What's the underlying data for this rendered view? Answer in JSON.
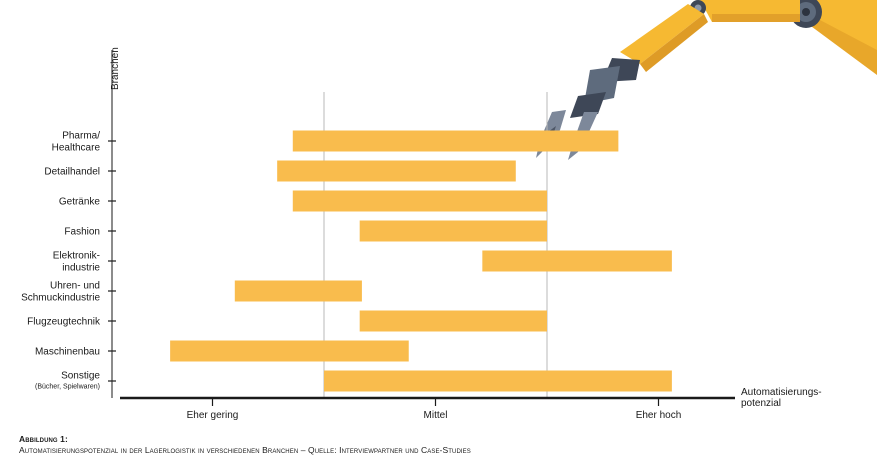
{
  "chart_data": {
    "type": "range-bar",
    "ylabel": "Branchen",
    "xlabel": "Automatisierungs-\npotenzial",
    "x_levels": [
      "Eher gering",
      "Mittel",
      "Eher hoch"
    ],
    "xlim": [
      0,
      3
    ],
    "grid": "vertical dividers between levels",
    "bar_color": "#F9BC4D",
    "categories": [
      {
        "label": "Pharma/\nHealthcare",
        "sub": "",
        "start": 0.86,
        "end": 2.32
      },
      {
        "label": "Detailhandel",
        "sub": "",
        "start": 0.79,
        "end": 1.86
      },
      {
        "label": "Getränke",
        "sub": "",
        "start": 0.86,
        "end": 2.0
      },
      {
        "label": "Fashion",
        "sub": "",
        "start": 1.16,
        "end": 2.0
      },
      {
        "label": "Elektronik-\nindustrie",
        "sub": "",
        "start": 1.71,
        "end": 2.56
      },
      {
        "label": "Uhren- und\nSchmuckindustrie",
        "sub": "",
        "start": 0.6,
        "end": 1.17
      },
      {
        "label": "Flugzeugtechnik",
        "sub": "",
        "start": 1.16,
        "end": 2.0
      },
      {
        "label": "Maschinenbau",
        "sub": "",
        "start": 0.31,
        "end": 1.38
      },
      {
        "label": "Sonstige",
        "sub": "(Bücher, Spielwaren)",
        "start": 1.0,
        "end": 2.56
      }
    ]
  },
  "caption": {
    "title": "Abbildung 1:",
    "text": "Automatisierungspotenzial in der Lagerlogistik in verschiedenen Branchen – Quelle: Interviewpartner und Case-Studies"
  },
  "decoration": {
    "robot_arm_color": "#F6B932",
    "robot_gripper_color": "#5E6B7D"
  }
}
